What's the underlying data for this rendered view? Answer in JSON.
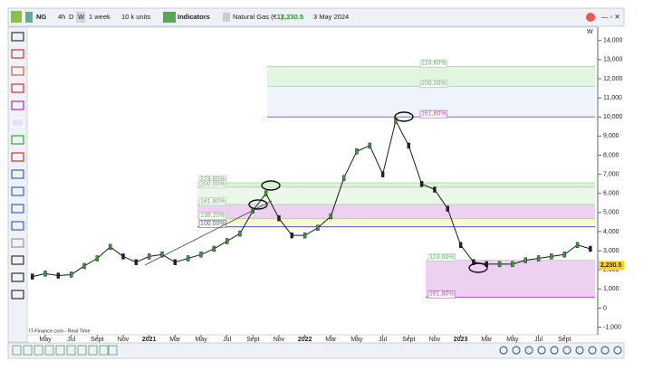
{
  "toolbar": {
    "symbol": "NG",
    "intervals": [
      "4h",
      "D",
      "W"
    ],
    "period": "1 week",
    "units": "10 k units",
    "indicators": "Indicators",
    "instrument": "Natural Gas (€1)",
    "price": "2,230.5",
    "date": "3 May 2024"
  },
  "chart_data": {
    "type": "line",
    "interval_label": "W",
    "source": "IT-Finance.com - Real Time",
    "categories": [
      null,
      "May",
      null,
      "Jul",
      null,
      "Sept",
      null,
      "Nov",
      null,
      "2021",
      null,
      "Mar",
      null,
      "May",
      null,
      "Jul",
      null,
      "Sept",
      null,
      "Nov",
      null,
      "2022",
      null,
      "Mar",
      null,
      "May",
      null,
      "Jul",
      null,
      "Sept",
      null,
      "Nov",
      null,
      "2023",
      null,
      "Mar",
      null,
      "May",
      null,
      "Jul",
      null,
      "Sept",
      null,
      null
    ],
    "values": [
      1650,
      1800,
      1700,
      1750,
      2200,
      2600,
      3200,
      2700,
      2400,
      2700,
      2800,
      2400,
      2600,
      2800,
      3100,
      3500,
      3900,
      5100,
      6000,
      4700,
      3800,
      3800,
      4200,
      4800,
      6800,
      8200,
      8500,
      7000,
      9800,
      8500,
      6500,
      6200,
      5200,
      3300,
      2400,
      2300,
      2300,
      2300,
      2500,
      2600,
      2700,
      2800,
      3300,
      3100
    ],
    "color": "#1a1a1a",
    "last_price": {
      "value": 2230.5,
      "label": "2,230.5"
    },
    "ylim": [
      -1400,
      14700
    ],
    "yticks": [
      {
        "value": -1000,
        "label": "-1,000"
      },
      0,
      {
        "value": 1000,
        "label": "1,000"
      },
      {
        "value": 2000,
        "label": "2,000"
      },
      {
        "value": 3000,
        "label": "3,000"
      },
      {
        "value": 4000,
        "label": "4,000"
      },
      {
        "value": 5000,
        "label": "5,000"
      },
      {
        "value": 6000,
        "label": "6,000"
      },
      {
        "value": 7000,
        "label": "7,000"
      },
      {
        "value": 8000,
        "label": "8,000"
      },
      {
        "value": 9000,
        "label": "9,000"
      },
      {
        "value": 10000,
        "label": "10,000"
      },
      {
        "value": 11000,
        "label": "11,000"
      },
      {
        "value": 12000,
        "label": "12,000"
      },
      {
        "value": 13000,
        "label": "13,000"
      },
      {
        "value": 14000,
        "label": "14,000"
      }
    ],
    "fib_groups": [
      {
        "levels": [
          {
            "value": 12650,
            "label": "223.60%",
            "color": "#d9f2d9"
          },
          {
            "value": 11600,
            "label": "200.00%",
            "color": "#eaf0fb"
          },
          {
            "value": 10000,
            "label": "161.80%",
            "color": "#b34fc4"
          }
        ]
      },
      {
        "levels": [
          {
            "value": 6560,
            "label": "223.60%",
            "color": "#d3efd0"
          },
          {
            "value": 6320,
            "label": "200.00%",
            "color": "#e6f6e4"
          },
          {
            "value": 5420,
            "label": "161.80%",
            "color": "#e7c6ee"
          },
          {
            "value": 4670,
            "label": "138.20%",
            "color": "#fbf6c4"
          },
          {
            "value": 4250,
            "label": "100.00%",
            "color": "#4b56c8"
          }
        ]
      },
      {
        "levels": [
          {
            "value": 2500,
            "label": "123.60%",
            "color": "#e7c6ee"
          },
          {
            "value": 570,
            "label": "161.80%",
            "color": "#b34fc4"
          }
        ]
      }
    ]
  }
}
